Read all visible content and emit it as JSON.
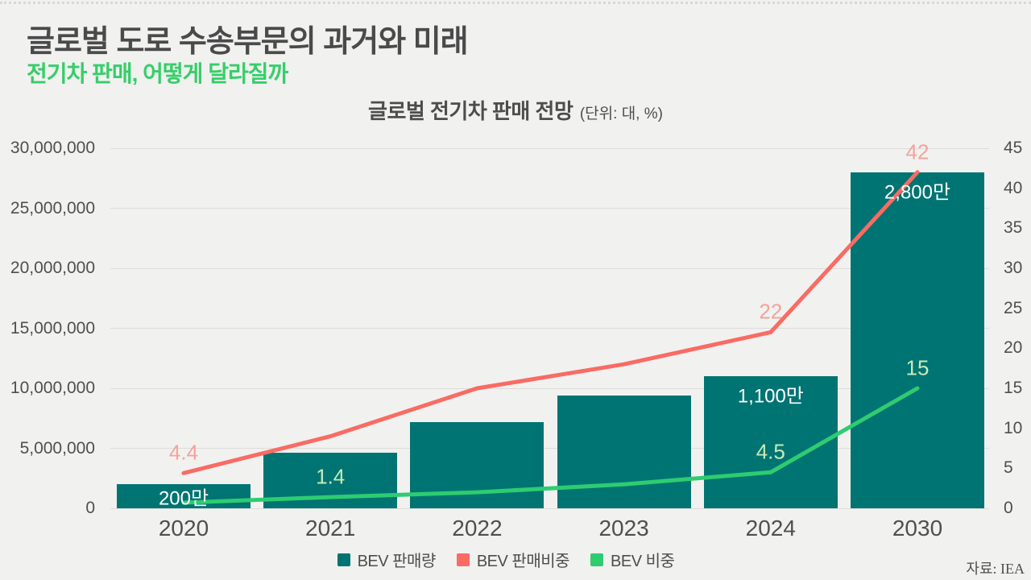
{
  "header": {
    "title": "글로벌 도로 수송부문의 과거와 미래",
    "subtitle": "전기차 판매, 어떻게 달라질까"
  },
  "source": "자료: IEA",
  "colors": {
    "background": "#f1f1f0",
    "title_text": "#4a4a4a",
    "subtitle_green": "#36ce69",
    "axis_text": "#4f4f4f",
    "gridline": "#dedcda",
    "bar_teal": "#007472",
    "red_line": "#f96b63",
    "red_label": "#f5a29c",
    "green_line": "#2ecc71",
    "green_label": "#c8eab8",
    "bar_label_white": "#ffffff"
  },
  "chart_data": {
    "type": "bar",
    "title": "글로벌 전기차 판매 전망",
    "subtitle_unit": "(단위: 대, %)",
    "categories": [
      "2020",
      "2021",
      "2022",
      "2023",
      "2024",
      "2030"
    ],
    "left_axis": {
      "min": 0,
      "max": 30000000,
      "ticks": [
        "0",
        "5,000,000",
        "10,000,000",
        "15,000,000",
        "20,000,000",
        "25,000,000",
        "30,000,000"
      ]
    },
    "right_axis": {
      "min": 0,
      "max": 45,
      "ticks": [
        "0",
        "5",
        "10",
        "15",
        "20",
        "25",
        "30",
        "35",
        "40",
        "45"
      ]
    },
    "grid": true,
    "legend_position": "bottom",
    "series": [
      {
        "name": "BEV 판매량",
        "kind": "bar",
        "axis": "left",
        "color": "#007472",
        "values": [
          2000000,
          4600000,
          7200000,
          9400000,
          11000000,
          28000000
        ],
        "point_labels": [
          {
            "index": 0,
            "text": "200만",
            "color": "#ffffff"
          },
          {
            "index": 4,
            "text": "1,100만",
            "color": "#ffffff"
          },
          {
            "index": 5,
            "text": "2,800만",
            "color": "#ffffff"
          }
        ]
      },
      {
        "name": "BEV 판매비중",
        "kind": "line",
        "axis": "right",
        "color": "#f96b63",
        "values": [
          4.4,
          9,
          15,
          18,
          22,
          42
        ],
        "point_labels": [
          {
            "index": 0,
            "text": "4.4",
            "color": "#f5a29c"
          },
          {
            "index": 4,
            "text": "22",
            "color": "#f5a29c"
          },
          {
            "index": 5,
            "text": "42",
            "color": "#f5a29c"
          }
        ]
      },
      {
        "name": "BEV 비중",
        "kind": "line",
        "axis": "right",
        "color": "#2ecc71",
        "values": [
          0.7,
          1.4,
          2.0,
          3.0,
          4.5,
          15
        ],
        "point_labels": [
          {
            "index": 1,
            "text": "1.4",
            "color": "#c8eab8"
          },
          {
            "index": 4,
            "text": "4.5",
            "color": "#c8eab8"
          },
          {
            "index": 5,
            "text": "15",
            "color": "#c8eab8"
          }
        ]
      }
    ],
    "legend": [
      {
        "label": "BEV 판매량",
        "color": "#007472"
      },
      {
        "label": "BEV 판매비중",
        "color": "#f96b63"
      },
      {
        "label": "BEV 비중",
        "color": "#2ecc71"
      }
    ]
  }
}
